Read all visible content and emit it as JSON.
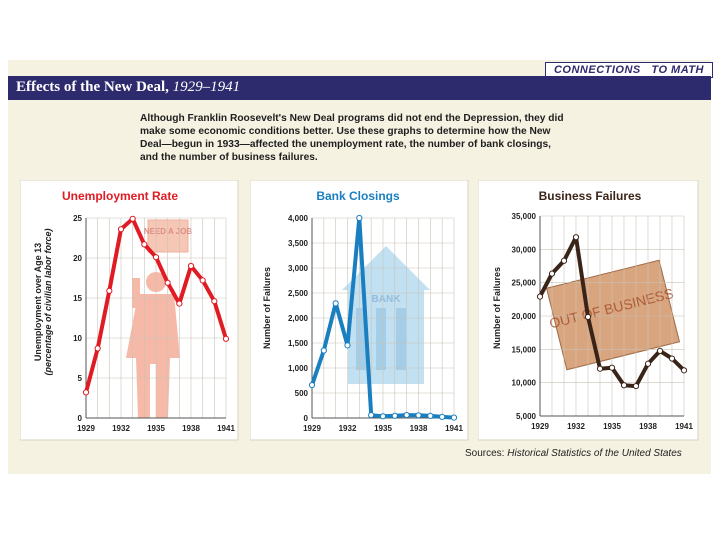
{
  "header": {
    "badge": "CONNECTIONS   TO MATH",
    "title": "Effects of the New Deal,",
    "title_years": "1929–1941"
  },
  "intro": "Although Franklin Roosevelt's New Deal programs did not end the Depression, they did make some economic conditions better. Use these graphs to determine how the New Deal—begun in 1933—affected the unemployment rate, the number of bank closings, and the number of business failures.",
  "sources": {
    "label": "Sources:",
    "text": "Historical Statistics of the United States"
  },
  "illustrations": {
    "sign": "NEED A JOB",
    "bank": "BANK",
    "box": "OUT OF BUSINESS"
  },
  "colors": {
    "unemployment": "#e01b24",
    "bank": "#1a7fc0",
    "business": "#3a2418",
    "header": "#2e2a6e"
  },
  "chart_data": [
    {
      "type": "line",
      "title": "Unemployment Rate",
      "ylabel": "Unemployment over Age 13",
      "ylabel2": "(percentage of civilian labor force)",
      "x": [
        1929,
        1930,
        1931,
        1932,
        1933,
        1934,
        1935,
        1936,
        1937,
        1938,
        1939,
        1940,
        1941
      ],
      "xticks": [
        "1929",
        "1932",
        "1935",
        "1938",
        "1941"
      ],
      "ylim": [
        0,
        25
      ],
      "yticks": [
        "0",
        "5",
        "10",
        "15",
        "20",
        "25"
      ],
      "values": [
        3.2,
        8.7,
        15.9,
        23.6,
        24.9,
        21.7,
        20.1,
        16.9,
        14.3,
        19.0,
        17.2,
        14.6,
        9.9
      ],
      "grid": true
    },
    {
      "type": "line",
      "title": "Bank Closings",
      "ylabel": "Number of Failures",
      "x": [
        1929,
        1930,
        1931,
        1932,
        1933,
        1934,
        1935,
        1936,
        1937,
        1938,
        1939,
        1940,
        1941
      ],
      "xticks": [
        "1929",
        "1932",
        "1935",
        "1938",
        "1941"
      ],
      "ylim": [
        0,
        4000
      ],
      "yticks": [
        "0",
        "500",
        "1,000",
        "1,500",
        "2,000",
        "2,500",
        "3,000",
        "3,500",
        "4,000"
      ],
      "values": [
        659,
        1350,
        2293,
        1453,
        4000,
        57,
        34,
        44,
        59,
        54,
        42,
        22,
        8
      ],
      "grid": true
    },
    {
      "type": "line",
      "title": "Business Failures",
      "ylabel": "Number of Failures",
      "x": [
        1929,
        1930,
        1931,
        1932,
        1933,
        1934,
        1935,
        1936,
        1937,
        1938,
        1939,
        1940,
        1941
      ],
      "xticks": [
        "1929",
        "1932",
        "1935",
        "1938",
        "1941"
      ],
      "ylim": [
        5000,
        35000
      ],
      "yticks": [
        "5,000",
        "10,000",
        "15,000",
        "20,000",
        "25,000",
        "30,000",
        "35,000"
      ],
      "values": [
        22909,
        26355,
        28285,
        31822,
        19859,
        12091,
        12244,
        9607,
        9490,
        12836,
        14768,
        13619,
        11848
      ],
      "grid": true
    }
  ]
}
